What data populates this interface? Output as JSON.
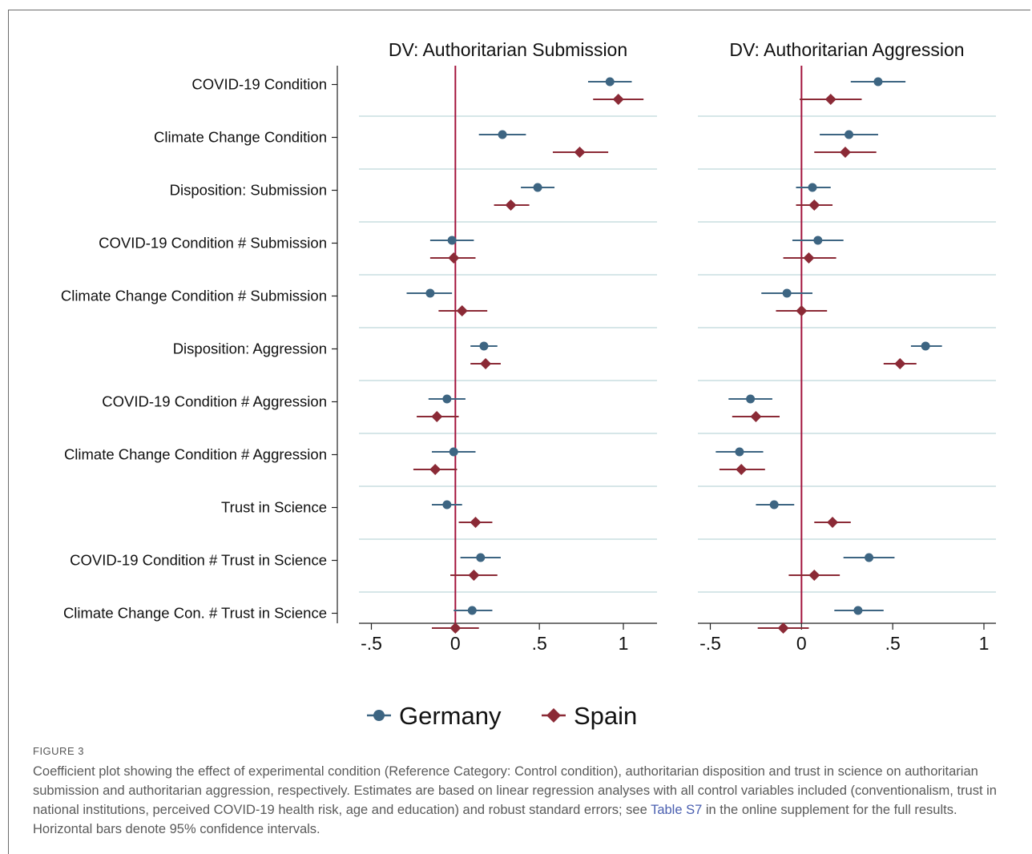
{
  "chart_data": {
    "type": "coefficient-plot",
    "panels": [
      {
        "title": "DV: Authoritarian Submission"
      },
      {
        "title": "DV: Authoritarian Aggression"
      }
    ],
    "xlim": [
      -0.55,
      1.2
    ],
    "xticks": [
      -0.5,
      0,
      0.5,
      1
    ],
    "xtick_labels": [
      "-.5",
      "0",
      ".5",
      "1"
    ],
    "reference_line": 0,
    "categories": [
      "COVID-19 Condition",
      "Climate Change Condition",
      "Disposition: Submission",
      "COVID-19 Condition # Submission",
      "Climate Change Condition # Submission",
      "Disposition: Aggression",
      "COVID-19 Condition # Aggression",
      "Climate Change Condition # Aggression",
      "Trust in Science",
      "COVID-19 Condition # Trust in Science",
      "Climate Change Con. # Trust in Science"
    ],
    "legend": {
      "position": "bottom"
    },
    "series": [
      {
        "name": "Germany",
        "color": "#3d6582",
        "marker": "circle",
        "panels": [
          [
            [
              0.92,
              0.79,
              1.05
            ],
            [
              0.28,
              0.14,
              0.42
            ],
            [
              0.49,
              0.39,
              0.59
            ],
            [
              -0.02,
              -0.15,
              0.11
            ],
            [
              -0.15,
              -0.29,
              -0.02
            ],
            [
              0.17,
              0.09,
              0.25
            ],
            [
              -0.05,
              -0.16,
              0.06
            ],
            [
              -0.01,
              -0.14,
              0.12
            ],
            [
              -0.05,
              -0.14,
              0.04
            ],
            [
              0.15,
              0.03,
              0.27
            ],
            [
              0.1,
              -0.01,
              0.22
            ]
          ],
          [
            [
              0.42,
              0.27,
              0.57
            ],
            [
              0.26,
              0.1,
              0.42
            ],
            [
              0.06,
              -0.03,
              0.16
            ],
            [
              0.09,
              -0.05,
              0.23
            ],
            [
              -0.08,
              -0.22,
              0.06
            ],
            [
              0.68,
              0.6,
              0.77
            ],
            [
              -0.28,
              -0.4,
              -0.16
            ],
            [
              -0.34,
              -0.47,
              -0.21
            ],
            [
              -0.15,
              -0.25,
              -0.04
            ],
            [
              0.37,
              0.23,
              0.51
            ],
            [
              0.31,
              0.18,
              0.45
            ]
          ]
        ]
      },
      {
        "name": "Spain",
        "color": "#8b2a36",
        "marker": "diamond",
        "panels": [
          [
            [
              0.97,
              0.82,
              1.12
            ],
            [
              0.74,
              0.58,
              0.91
            ],
            [
              0.33,
              0.23,
              0.44
            ],
            [
              -0.01,
              -0.15,
              0.12
            ],
            [
              0.04,
              -0.1,
              0.19
            ],
            [
              0.18,
              0.09,
              0.27
            ],
            [
              -0.11,
              -0.23,
              0.02
            ],
            [
              -0.12,
              -0.25,
              0.01
            ],
            [
              0.12,
              0.02,
              0.22
            ],
            [
              0.11,
              -0.03,
              0.25
            ],
            [
              0.0,
              -0.14,
              0.14
            ]
          ],
          [
            [
              0.16,
              -0.01,
              0.33
            ],
            [
              0.24,
              0.07,
              0.41
            ],
            [
              0.07,
              -0.03,
              0.17
            ],
            [
              0.04,
              -0.1,
              0.19
            ],
            [
              0.0,
              -0.14,
              0.14
            ],
            [
              0.54,
              0.45,
              0.63
            ],
            [
              -0.25,
              -0.38,
              -0.12
            ],
            [
              -0.33,
              -0.45,
              -0.2
            ],
            [
              0.17,
              0.07,
              0.27
            ],
            [
              0.07,
              -0.07,
              0.21
            ],
            [
              -0.1,
              -0.24,
              0.04
            ]
          ]
        ]
      }
    ]
  },
  "caption": {
    "label": "FIGURE 3",
    "text_before": "Coefficient plot showing the effect of experimental condition (Reference Category: Control condition), authoritarian disposition and trust in science on authoritarian submission and authoritarian aggression, respectively. Estimates are based on linear regression analyses with all control variables included (conventionalism, trust in national institutions, perceived COVID-19 health risk, age and education) and robust standard errors; see ",
    "link_text": "Table S7",
    "text_after": " in the online supplement for the full results. Horizontal bars denote 95% confidence intervals."
  }
}
